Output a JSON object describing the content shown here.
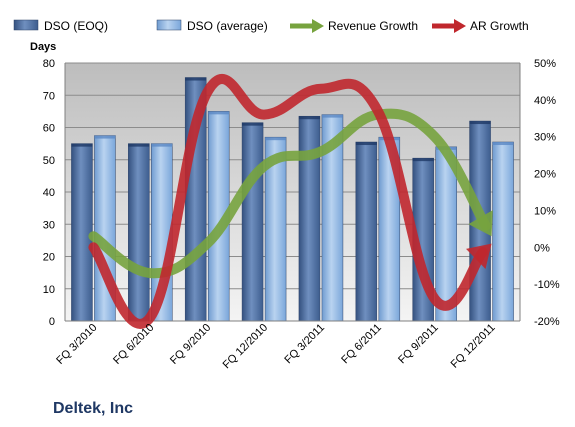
{
  "company_label": "Deltek, Inc",
  "chart_data": {
    "type": "bar",
    "ylabel": "Days",
    "legend_position": "top",
    "grid": true,
    "categories": [
      "FQ 3/2010",
      "FQ 6/2010",
      "FQ 9/2010",
      "FQ 12/2010",
      "FQ 3/2011",
      "FQ 6/2011",
      "FQ 9/2011",
      "FQ 12/2011"
    ],
    "left_axis": {
      "min": 0,
      "max": 80,
      "ticks": [
        "0",
        "10",
        "20",
        "30",
        "40",
        "50",
        "60",
        "70",
        "80"
      ]
    },
    "right_axis": {
      "min": -20,
      "max": 50,
      "ticks": [
        "-20%",
        "-10%",
        "0%",
        "10%",
        "20%",
        "30%",
        "40%",
        "50%"
      ]
    },
    "series": [
      {
        "name": "DSO (EOQ)",
        "kind": "bar",
        "axis": "left",
        "color": "#4a6fa5",
        "values": [
          55,
          55,
          75.5,
          61.5,
          63.5,
          55.5,
          50.5,
          62
        ]
      },
      {
        "name": "DSO (average)",
        "kind": "bar",
        "axis": "left",
        "color": "#8db4e2",
        "values": [
          57.5,
          55,
          65,
          57,
          64,
          57,
          54,
          55.5
        ]
      },
      {
        "name": "Revenue Growth",
        "kind": "arrow-line",
        "axis": "right",
        "color": "#77a33e",
        "values": [
          3,
          -7,
          1,
          22,
          26,
          36,
          30,
          3
        ]
      },
      {
        "name": "AR Growth",
        "kind": "arrow-line",
        "axis": "right",
        "color": "#c0272d",
        "values": [
          0,
          -19,
          42,
          36,
          43,
          37,
          -14,
          1
        ]
      }
    ]
  }
}
